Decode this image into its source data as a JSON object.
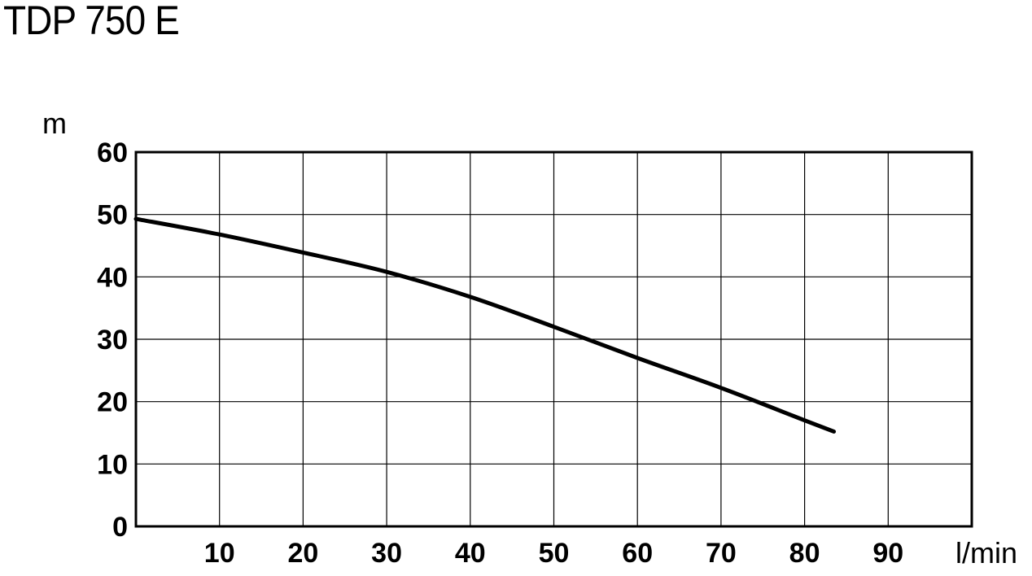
{
  "chart_data": {
    "type": "line",
    "title": "TDP 750 E",
    "ylabel": "m",
    "xlabel": "l/min",
    "xlim": [
      0,
      100
    ],
    "ylim": [
      0,
      60
    ],
    "x_ticks": [
      10,
      20,
      30,
      40,
      50,
      60,
      70,
      80,
      90
    ],
    "y_ticks": [
      0,
      10,
      20,
      30,
      40,
      50,
      60
    ],
    "grid": true,
    "series": [
      {
        "x": [
          0,
          10,
          20,
          30,
          40,
          50,
          60,
          70,
          80,
          83.5
        ],
        "y": [
          49.3,
          46.8,
          43.9,
          40.8,
          36.8,
          32.0,
          27.0,
          22.2,
          17.0,
          15.2
        ]
      }
    ]
  }
}
